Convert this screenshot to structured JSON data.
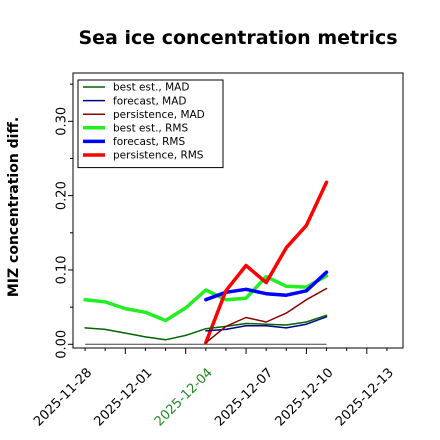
{
  "chart_data": {
    "type": "line",
    "title": "Sea ice concentration metrics",
    "ylabel": "MIZ concentration diff.",
    "xlabel": "",
    "ylim": [
      -0.005,
      0.365
    ],
    "yticks": [
      0.0,
      0.1,
      0.2,
      0.3
    ],
    "ytick_labels": [
      "0.00",
      "0.10",
      "0.20",
      "0.30"
    ],
    "xlim": [
      -0.6,
      15.8
    ],
    "xticks": [
      2,
      5,
      8,
      11,
      14
    ],
    "xtick_labels": [
      "2025-11-28",
      "2025-12-01",
      "2025-12-04",
      "2025-12-07",
      "2025-12-10",
      "2025-12-13"
    ],
    "xtick_positions": [
      0,
      3,
      6,
      9,
      12,
      15
    ],
    "xtick_highlight_index": 2,
    "xtick_highlight_color": "#228B22",
    "grid": false,
    "legend_position": "top-left",
    "reference_line": {
      "y": 0.0,
      "x_start": 0,
      "x_end": 12,
      "color": "#444444"
    },
    "series": [
      {
        "name": "best est., MAD",
        "color": "#006400",
        "width": 1.5,
        "x": [
          0,
          1,
          2,
          3,
          4,
          5,
          6,
          7,
          8,
          9,
          10,
          11,
          12
        ],
        "y": [
          0.022,
          0.02,
          0.015,
          0.01,
          0.006,
          0.012,
          0.021,
          0.024,
          0.028,
          0.027,
          0.026,
          0.03,
          0.039
        ]
      },
      {
        "name": "forecast,  MAD",
        "color": "#00008B",
        "width": 1.5,
        "x": [
          6,
          7,
          8,
          9,
          10,
          11,
          12
        ],
        "y": [
          0.018,
          0.02,
          0.025,
          0.025,
          0.022,
          0.027,
          0.037
        ]
      },
      {
        "name": "persistence, MAD",
        "color": "#8B0000",
        "width": 1.5,
        "x": [
          6,
          7,
          8,
          9,
          10,
          11,
          12
        ],
        "y": [
          0.002,
          0.024,
          0.036,
          0.03,
          0.042,
          0.06,
          0.075
        ]
      },
      {
        "name": "best est., RMS",
        "color": "#22EE22",
        "width": 3.5,
        "x": [
          0,
          1,
          2,
          3,
          4,
          5,
          6,
          7,
          8,
          9,
          10,
          11,
          12
        ],
        "y": [
          0.06,
          0.057,
          0.048,
          0.043,
          0.032,
          0.049,
          0.073,
          0.06,
          0.062,
          0.091,
          0.078,
          0.077,
          0.092
        ]
      },
      {
        "name": "forecast,  RMS",
        "color": "#0000FF",
        "width": 3.5,
        "x": [
          6,
          7,
          8,
          9,
          10,
          11,
          12
        ],
        "y": [
          0.06,
          0.07,
          0.074,
          0.068,
          0.066,
          0.072,
          0.097
        ]
      },
      {
        "name": "persistence, RMS",
        "color": "#FF0000",
        "width": 3.5,
        "x": [
          6,
          7,
          8,
          9,
          10,
          11,
          12
        ],
        "y": [
          0.002,
          0.072,
          0.106,
          0.083,
          0.13,
          0.16,
          0.218
        ]
      }
    ]
  }
}
